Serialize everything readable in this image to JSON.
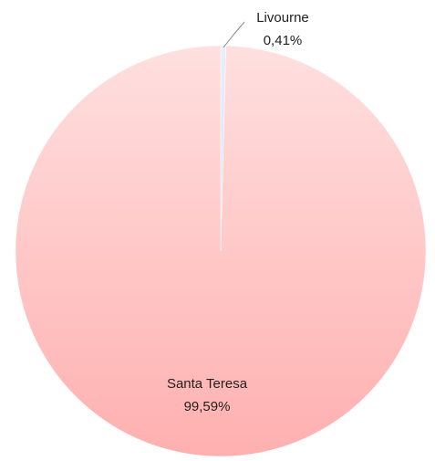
{
  "chart_data": {
    "type": "pie",
    "categories": [
      "Livourne",
      "Santa Teresa"
    ],
    "values": [
      0.41,
      99.59
    ],
    "value_labels": [
      "0,41%",
      "99,59%"
    ],
    "colors": [
      "#c3d5f2",
      "#ffb0b0"
    ]
  }
}
